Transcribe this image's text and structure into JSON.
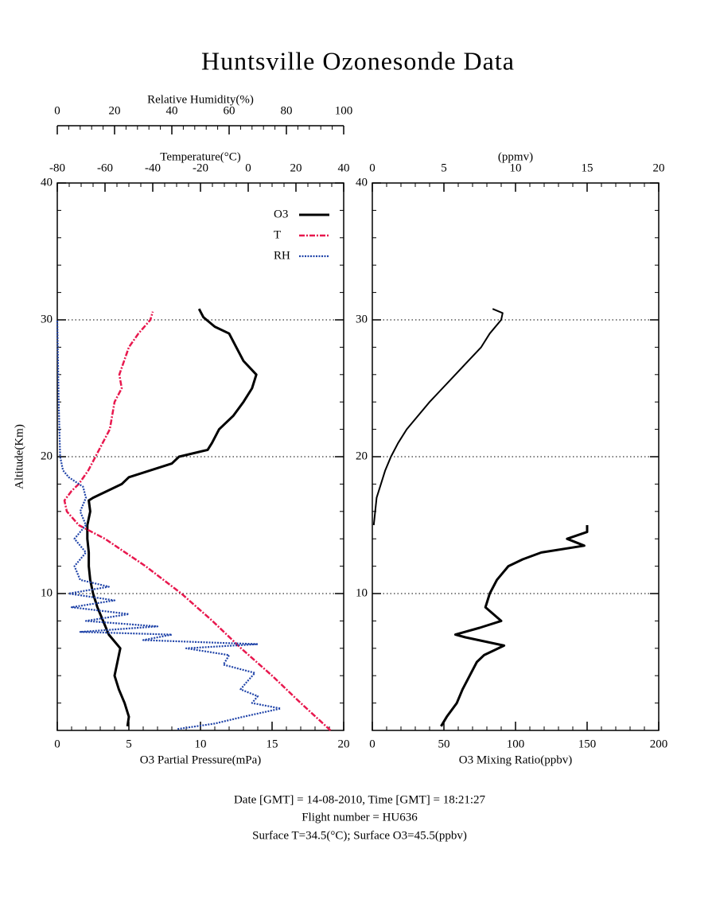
{
  "title": "Huntsville Ozonesonde Data",
  "footer": [
    "Date [GMT] = 14-08-2010,  Time [GMT] = 18:21:27",
    "Flight number = HU636",
    "Surface T=34.5(°C); Surface O3=45.5(ppbv)"
  ],
  "chart_data": [
    {
      "type": "line",
      "ylabel": "Altitude(Km)",
      "ylim": [
        0,
        40
      ],
      "yticks": [
        10,
        20,
        30,
        40
      ],
      "grid": true,
      "legend": "upper right",
      "xaxes": {
        "bottom": {
          "label": "O3 Partial Pressure(mPa)",
          "lim": [
            0,
            20
          ],
          "ticks": [
            0,
            5,
            10,
            15,
            20
          ]
        },
        "top": {
          "label": "Temperature(°C)",
          "lim": [
            -80,
            40
          ],
          "ticks": [
            -80,
            -60,
            -40,
            -20,
            0,
            20,
            40
          ]
        },
        "top-outer": {
          "label": "Relative Humidity(%)",
          "lim": [
            0,
            100
          ],
          "ticks": [
            0,
            20,
            40,
            60,
            80,
            100
          ]
        }
      },
      "series": [
        {
          "name": "O3",
          "color": "#000000",
          "style": "solid",
          "axis": "bottom",
          "altitude": [
            0.3,
            1,
            2,
            3,
            4,
            5,
            6,
            7,
            8,
            9,
            10,
            11,
            12,
            13,
            14,
            15,
            16,
            16.8,
            17,
            17.5,
            18,
            18.5,
            19,
            19.5,
            20,
            20.5,
            21,
            22,
            23,
            24,
            25,
            26,
            27,
            28,
            29,
            29.5,
            30.2,
            30.8
          ],
          "values": [
            4.9,
            5.0,
            4.7,
            4.3,
            4.0,
            4.2,
            4.4,
            3.6,
            3.2,
            2.8,
            2.5,
            2.3,
            2.2,
            2.2,
            2.1,
            2.1,
            2.3,
            2.2,
            2.5,
            3.5,
            4.5,
            5.0,
            6.5,
            8.0,
            8.5,
            10.5,
            10.8,
            11.3,
            12.3,
            13.0,
            13.6,
            13.9,
            13.0,
            12.5,
            12.0,
            11.0,
            10.2,
            9.9
          ]
        },
        {
          "name": "T",
          "color": "#e8184e",
          "style": "dashdot",
          "axis": "top",
          "altitude": [
            0,
            2,
            4,
            6,
            8,
            10,
            12,
            14,
            15,
            16,
            16.8,
            17.5,
            18,
            19,
            20,
            22,
            24,
            25,
            26,
            27,
            28,
            29,
            30,
            30.6
          ],
          "values": [
            34.5,
            22,
            10,
            -3,
            -15,
            -28,
            -43,
            -60,
            -71,
            -76,
            -77,
            -74,
            -71,
            -67,
            -64,
            -58,
            -56,
            -53,
            -54,
            -52,
            -50,
            -46,
            -41,
            -40
          ]
        },
        {
          "name": "RH",
          "color": "#1f43a8",
          "style": "dotted",
          "axis": "top-outer",
          "altitude": [
            0.1,
            0.5,
            1,
            1.6,
            2,
            2.5,
            3,
            3.5,
            4.2,
            4.8,
            5.5,
            6,
            6.3,
            6.6,
            7,
            7.2,
            7.6,
            8,
            8.5,
            9,
            9.5,
            10,
            10.5,
            11,
            12,
            13,
            14,
            15,
            16,
            17,
            17.8,
            18.5,
            19,
            20,
            24,
            30
          ],
          "values": [
            42,
            55,
            65,
            78,
            68,
            70,
            64,
            66,
            69,
            58,
            60,
            45,
            70,
            30,
            40,
            8,
            35,
            10,
            25,
            5,
            20,
            4,
            18,
            8,
            6,
            10,
            6,
            10,
            8,
            10,
            9,
            4,
            2,
            1,
            0.5,
            0
          ]
        }
      ]
    },
    {
      "type": "line",
      "ylim": [
        0,
        40
      ],
      "yticks": [
        10,
        20,
        30,
        40
      ],
      "grid": true,
      "xaxes": {
        "bottom": {
          "label": "O3 Mixing Ratio(ppbv)",
          "lim": [
            0,
            200
          ],
          "ticks": [
            0,
            50,
            100,
            150,
            200
          ]
        },
        "top": {
          "label": "(ppmv)",
          "lim": [
            0,
            20
          ],
          "ticks": [
            0,
            5,
            10,
            15,
            20
          ]
        }
      },
      "series": [
        {
          "color": "#000000",
          "style": "solid",
          "axis": "bottom",
          "altitude": [
            0.3,
            1,
            2,
            3,
            4,
            5,
            5.5,
            6.2,
            6.8,
            7,
            7.5,
            8,
            9,
            10,
            11,
            12,
            12.5,
            13,
            13.5,
            14,
            14.5,
            15
          ],
          "values": [
            48,
            52,
            59,
            63,
            68,
            73,
            78,
            92,
            65,
            58,
            75,
            90,
            79,
            82,
            87,
            95,
            105,
            118,
            148,
            136,
            150,
            150
          ]
        },
        {
          "color": "#000000",
          "style": "thin",
          "axis": "top",
          "altitude": [
            15,
            16,
            17,
            18,
            19,
            20,
            21,
            22,
            23,
            24,
            25,
            26,
            27,
            28,
            29,
            30,
            30.5,
            30.8
          ],
          "values": [
            0.1,
            0.2,
            0.3,
            0.6,
            0.9,
            1.3,
            1.8,
            2.4,
            3.2,
            4.0,
            4.9,
            5.8,
            6.7,
            7.6,
            8.2,
            9.0,
            9.1,
            8.4
          ]
        }
      ]
    }
  ]
}
